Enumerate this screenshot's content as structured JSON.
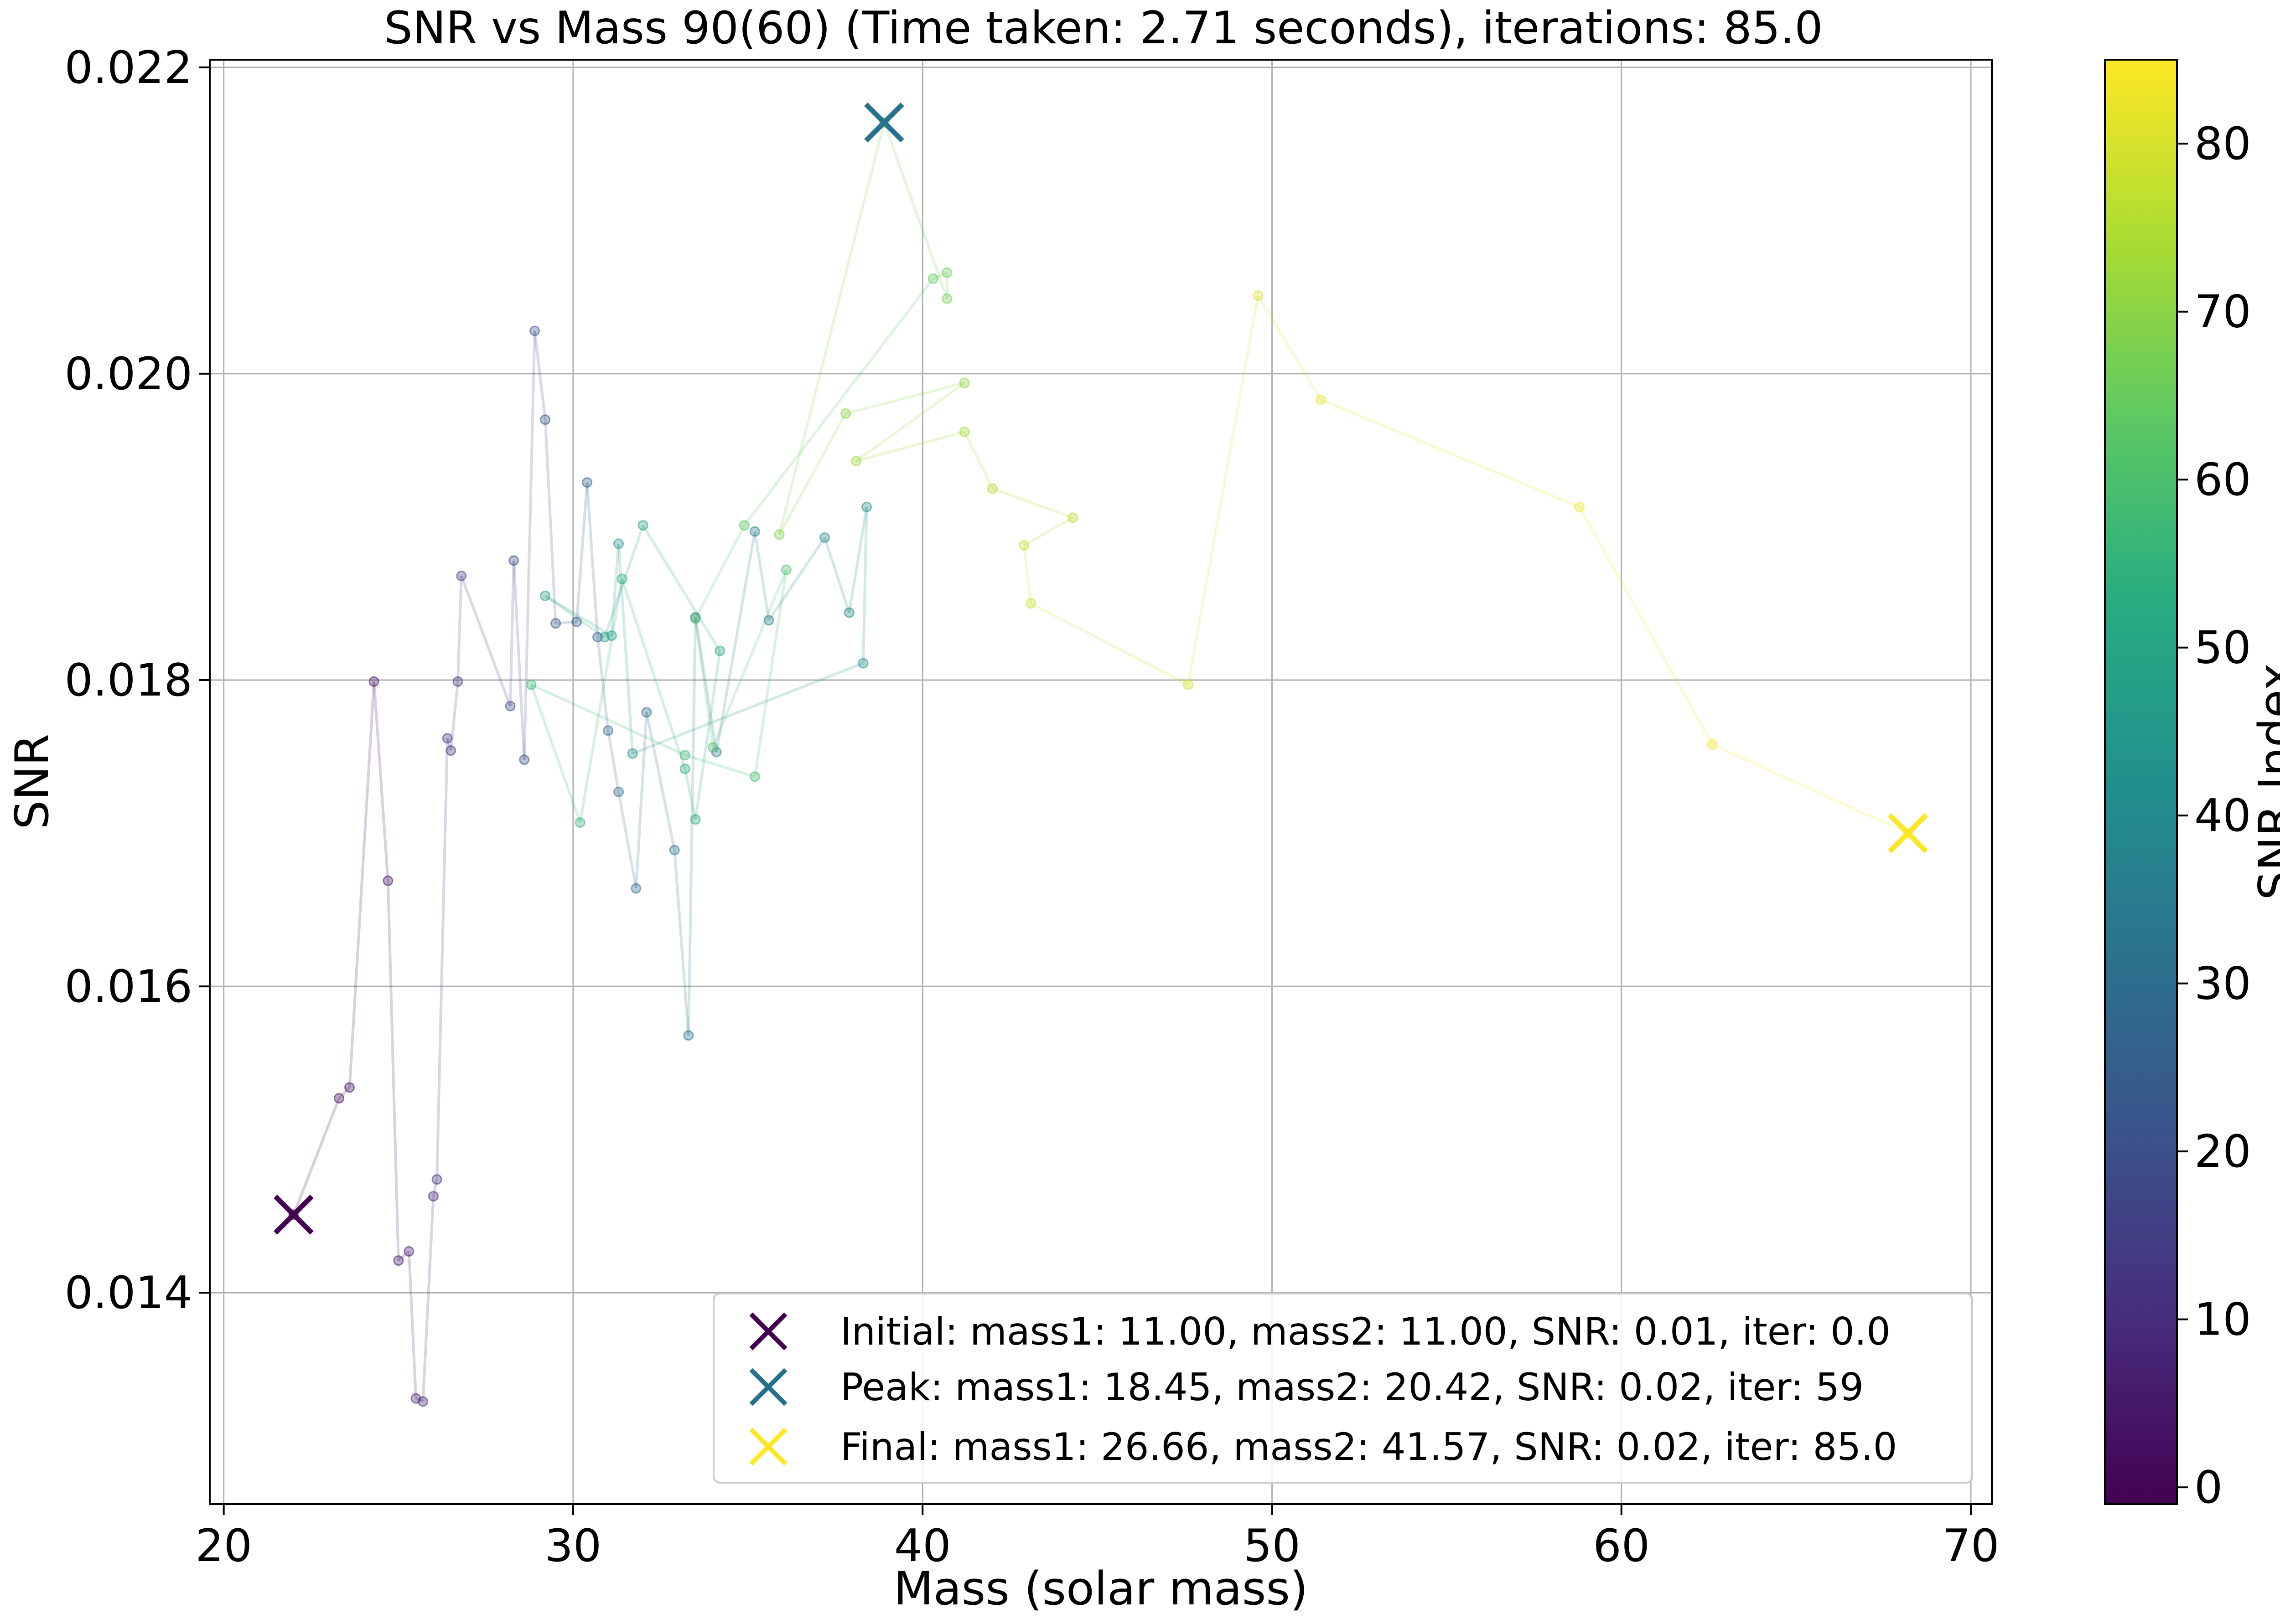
{
  "chart_data": {
    "type": "scatter",
    "title": "SNR vs Mass 90(60) (Time taken: 2.71 seconds), iterations: 85.0",
    "xlabel": "Mass (solar mass)",
    "ylabel": "SNR",
    "xlim": [
      19.6,
      70.6
    ],
    "ylim": [
      0.01262,
      0.02205
    ],
    "xticks": [
      20,
      30,
      40,
      50,
      60,
      70
    ],
    "xtick_labels": [
      "20",
      "30",
      "40",
      "50",
      "60",
      "70"
    ],
    "yticks": [
      0.014,
      0.016,
      0.018,
      0.02,
      0.022
    ],
    "ytick_labels": [
      "0.014",
      "0.016",
      "0.018",
      "0.020",
      "0.022"
    ],
    "grid": true,
    "colormap": "viridis",
    "colorbar": {
      "label": "SNR Index",
      "range": [
        -1,
        85
      ],
      "ticks": [
        0,
        10,
        20,
        30,
        40,
        50,
        60,
        70,
        80
      ],
      "tick_labels": [
        "0",
        "10",
        "20",
        "30",
        "40",
        "50",
        "60",
        "70",
        "80"
      ]
    },
    "trajectory": [
      [
        22.0,
        0.01451
      ],
      [
        23.3,
        0.01527
      ],
      [
        23.6,
        0.01534
      ],
      [
        24.3,
        0.01799
      ],
      [
        24.7,
        0.01669
      ],
      [
        25.0,
        0.01421
      ],
      [
        25.3,
        0.01427
      ],
      [
        25.5,
        0.01331
      ],
      [
        25.7,
        0.01329
      ],
      [
        26.0,
        0.01463
      ],
      [
        26.1,
        0.01474
      ],
      [
        26.4,
        0.01762
      ],
      [
        26.5,
        0.01754
      ],
      [
        26.7,
        0.01799
      ],
      [
        26.8,
        0.01868
      ],
      [
        28.2,
        0.01783
      ],
      [
        28.3,
        0.01878
      ],
      [
        28.6,
        0.01748
      ],
      [
        28.9,
        0.02028
      ],
      [
        29.2,
        0.0197
      ],
      [
        29.5,
        0.01837
      ],
      [
        30.1,
        0.01838
      ],
      [
        30.4,
        0.01929
      ],
      [
        30.7,
        0.01828
      ],
      [
        31.0,
        0.01767
      ],
      [
        31.3,
        0.01727
      ],
      [
        31.8,
        0.01664
      ],
      [
        32.1,
        0.01779
      ],
      [
        32.9,
        0.01689
      ],
      [
        33.3,
        0.01568
      ],
      [
        33.5,
        0.01841
      ],
      [
        34.1,
        0.01753
      ],
      [
        35.2,
        0.01897
      ],
      [
        35.6,
        0.01839
      ],
      [
        37.2,
        0.01893
      ],
      [
        37.9,
        0.01844
      ],
      [
        38.4,
        0.01913
      ],
      [
        38.3,
        0.01811
      ],
      [
        31.7,
        0.01752
      ],
      [
        31.3,
        0.01889
      ],
      [
        31.1,
        0.01829
      ],
      [
        29.2,
        0.01855
      ],
      [
        30.9,
        0.01828
      ],
      [
        32.0,
        0.01901
      ],
      [
        34.2,
        0.01819
      ],
      [
        33.5,
        0.01709
      ],
      [
        33.2,
        0.01742
      ],
      [
        31.4,
        0.01866
      ],
      [
        30.2,
        0.01707
      ],
      [
        28.8,
        0.01797
      ],
      [
        33.2,
        0.01751
      ],
      [
        35.2,
        0.01737
      ],
      [
        36.1,
        0.01872
      ],
      [
        34.0,
        0.01756
      ],
      [
        33.5,
        0.0184
      ],
      [
        34.9,
        0.01901
      ],
      [
        40.3,
        0.02062
      ],
      [
        40.7,
        0.02066
      ],
      [
        40.7,
        0.02049
      ],
      [
        38.9,
        0.02164
      ],
      [
        35.9,
        0.01895
      ],
      [
        37.8,
        0.01974
      ],
      [
        41.2,
        0.01994
      ],
      [
        38.1,
        0.01943
      ],
      [
        41.2,
        0.01962
      ],
      [
        42.0,
        0.01925
      ],
      [
        44.3,
        0.01906
      ],
      [
        42.9,
        0.01888
      ],
      [
        43.1,
        0.0185
      ],
      [
        47.6,
        0.01797
      ],
      [
        49.6,
        0.02051
      ],
      [
        51.4,
        0.01983
      ],
      [
        58.8,
        0.01913
      ],
      [
        62.6,
        0.01758
      ],
      [
        68.2,
        0.017
      ]
    ],
    "markers": [
      {
        "label": "Initial: mass1: 11.00, mass2: 11.00, SNR: 0.01, iter: 0.0",
        "x": 22.0,
        "y": 0.01451,
        "color": "#440154"
      },
      {
        "label": "Peak: mass1: 18.45, mass2: 20.42, SNR: 0.02, iter: 59",
        "x": 38.9,
        "y": 0.02164,
        "color": "#26718e"
      },
      {
        "label": "Final: mass1: 26.66, mass2: 41.57, SNR: 0.02, iter: 85.0",
        "x": 68.2,
        "y": 0.017,
        "color": "#fde725"
      }
    ],
    "legend_position": "lower right"
  }
}
